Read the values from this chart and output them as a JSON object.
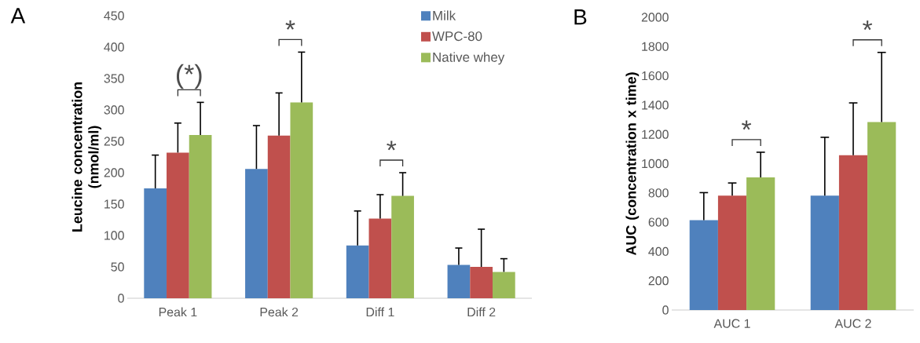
{
  "chart_data": [
    {
      "type": "bar",
      "title": "A",
      "ylabel": "Leucine concentration (nmol/ml)",
      "categories": [
        "Peak 1",
        "Peak 2",
        "Diff 1",
        "Diff 2"
      ],
      "series": [
        {
          "name": "Milk",
          "color": "#4f81bd",
          "values": [
            175,
            206,
            84,
            53
          ],
          "errors": [
            [
              175,
              228
            ],
            [
              206,
              275
            ],
            [
              84,
              139
            ],
            [
              53,
              80
            ]
          ]
        },
        {
          "name": "WPC-80",
          "color": "#c0504d",
          "values": [
            232,
            259,
            127,
            50
          ],
          "errors": [
            [
              232,
              279
            ],
            [
              259,
              327
            ],
            [
              127,
              165
            ],
            [
              50,
              110
            ]
          ]
        },
        {
          "name": "Native whey",
          "color": "#9bbb59",
          "values": [
            260,
            312,
            163,
            42
          ],
          "errors": [
            [
              260,
              312
            ],
            [
              312,
              392
            ],
            [
              163,
              200
            ],
            [
              42,
              63
            ]
          ]
        }
      ],
      "ylim": [
        0,
        450
      ],
      "yticks": [
        0,
        50,
        100,
        150,
        200,
        250,
        300,
        350,
        400,
        450
      ],
      "legend": "top right",
      "annotations": [
        "(*)",
        "*",
        "*"
      ]
    },
    {
      "type": "bar",
      "title": "B",
      "ylabel": "AUC (concentration x time)",
      "categories": [
        "AUC 1",
        "AUC 2"
      ],
      "series": [
        {
          "color": "#4f81bd",
          "values": [
            614,
            782
          ],
          "errors": [
            [
              614,
              802
            ],
            [
              782,
              1180
            ]
          ]
        },
        {
          "color": "#c0504d",
          "values": [
            782,
            1058
          ],
          "errors": [
            [
              782,
              868
            ],
            [
              1058,
              1415
            ]
          ]
        },
        {
          "color": "#9bbb59",
          "values": [
            906,
            1284
          ],
          "errors": [
            [
              906,
              1078
            ],
            [
              1284,
              1760
            ]
          ]
        }
      ],
      "ylim": [
        0,
        2000
      ],
      "yticks": [
        0,
        200,
        400,
        600,
        800,
        1000,
        1200,
        1400,
        1600,
        1800,
        2000
      ],
      "annotations": [
        "*",
        "*"
      ]
    }
  ]
}
